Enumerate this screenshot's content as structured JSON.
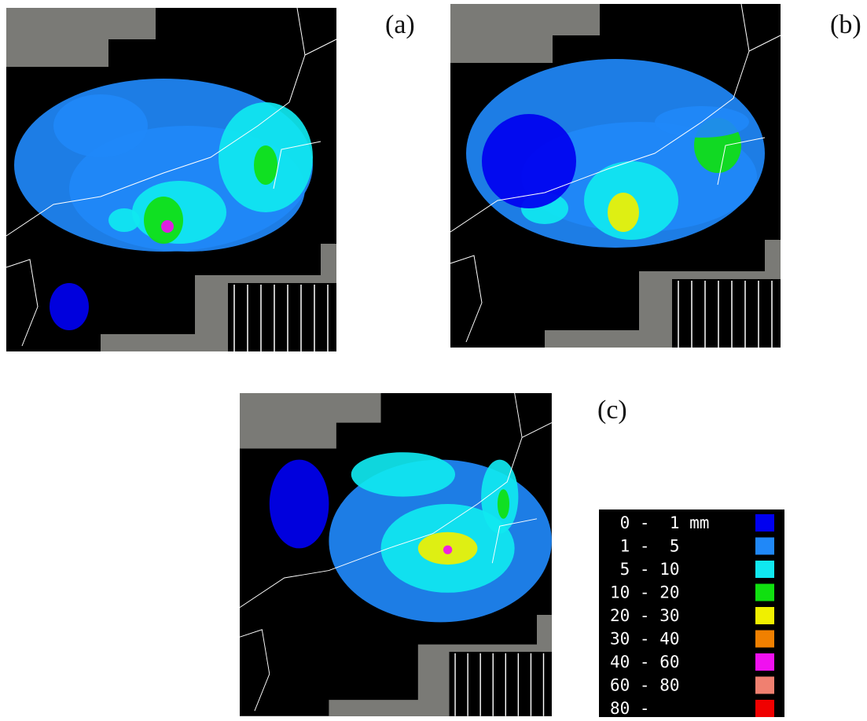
{
  "panels": [
    {
      "label": "(a)"
    },
    {
      "label": "(b)"
    },
    {
      "label": "(c)"
    }
  ],
  "legend": {
    "items": [
      {
        "text": " 0 -  1 mm",
        "color": "#0000f0"
      },
      {
        "text": " 1 -  5",
        "color": "#2088f8"
      },
      {
        "text": " 5 - 10",
        "color": "#10e8f0"
      },
      {
        "text": "10 - 20",
        "color": "#10e010"
      },
      {
        "text": "20 - 30",
        "color": "#f0f000"
      },
      {
        "text": "30 - 40",
        "color": "#f08000"
      },
      {
        "text": "40 - 60",
        "color": "#f010f0"
      },
      {
        "text": "60 - 80",
        "color": "#f08070"
      },
      {
        "text": "80 -",
        "color": "#f00000"
      }
    ]
  }
}
